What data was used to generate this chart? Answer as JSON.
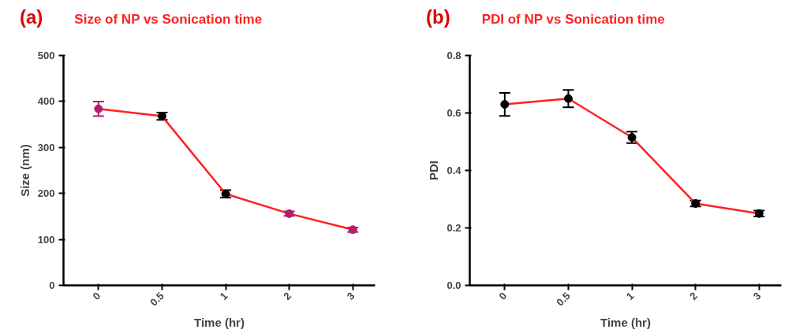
{
  "chart_data": [
    {
      "type": "line",
      "title": "(a)",
      "subtitle": "Size of NP vs Sonication time",
      "xlabel": "Time (hr)",
      "ylabel": "Size (nm)",
      "categories": [
        "0",
        "0.5",
        "1",
        "2",
        "3"
      ],
      "series": [
        {
          "color": "#ff2020",
          "values": [
            384,
            368,
            199,
            156,
            121
          ],
          "errors": [
            16,
            8,
            8,
            5,
            5
          ],
          "colors": [
            "#b0206a",
            "#000000",
            "#000000",
            "#b0206a",
            "#b0206a"
          ]
        }
      ],
      "ylim": [
        0,
        500
      ],
      "yticks": [
        0,
        100,
        200,
        300,
        400,
        500
      ],
      "grid": false,
      "marker": "circle",
      "line_style": "solid"
    },
    {
      "type": "line",
      "title": "(b)",
      "subtitle": "PDI of NP vs Sonication time",
      "xlabel": "Time (hr)",
      "ylabel": "PDI",
      "categories": [
        "0",
        "0.5",
        "1",
        "2",
        "3"
      ],
      "series": [
        {
          "color": "#ff2020",
          "values": [
            0.63,
            0.65,
            0.515,
            0.285,
            0.25
          ],
          "errors": [
            0.04,
            0.03,
            0.02,
            0.01,
            0.01
          ],
          "colors": [
            "#000000",
            "#000000",
            "#000000",
            "#000000",
            "#000000"
          ]
        }
      ],
      "ylim": [
        0,
        0.8
      ],
      "yticks": [
        {
          "value": 0,
          "label": "0.0"
        },
        0.2,
        0.4,
        0.6,
        0.8
      ],
      "grid": false,
      "marker": "circle",
      "line_style": "solid"
    }
  ]
}
